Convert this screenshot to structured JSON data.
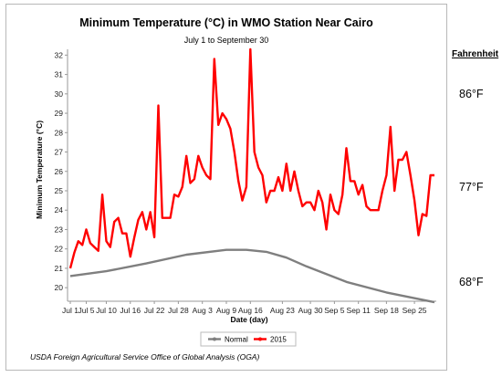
{
  "chart_data": {
    "type": "line",
    "title": "Minimum Temperature (°C) in WMO Station Near Cairo",
    "subtitle": "July 1 to September 30",
    "xlabel": "Date (day)",
    "ylabel": "Minimum Temperature (°C)",
    "ylim": [
      19.3,
      32.3
    ],
    "yticks": [
      20,
      21,
      22,
      23,
      24,
      25,
      26,
      27,
      28,
      29,
      30,
      31,
      32
    ],
    "x_range_days": [
      1,
      92
    ],
    "x_ticks": [
      {
        "day": 1,
        "label": "Jul 1"
      },
      {
        "day": 5,
        "label": "Jul 5"
      },
      {
        "day": 10,
        "label": "Jul 10"
      },
      {
        "day": 16,
        "label": "Jul 16"
      },
      {
        "day": 22,
        "label": "Jul 22"
      },
      {
        "day": 28,
        "label": "Jul 28"
      },
      {
        "day": 34,
        "label": "Aug 3"
      },
      {
        "day": 40,
        "label": "Aug 9"
      },
      {
        "day": 46,
        "label": "Aug 16"
      },
      {
        "day": 54,
        "label": "Aug 23"
      },
      {
        "day": 61,
        "label": "Aug 30"
      },
      {
        "day": 67,
        "label": "Sep 5"
      },
      {
        "day": 73,
        "label": "Sep 11"
      },
      {
        "day": 80,
        "label": "Sep 18"
      },
      {
        "day": 87,
        "label": "Sep 25"
      }
    ],
    "grid": false,
    "legend_position": "bottom",
    "series": [
      {
        "name": "Normal",
        "color": "#7f7f7f",
        "x": [
          1,
          10,
          20,
          30,
          40,
          45,
          50,
          55,
          60,
          70,
          80,
          92
        ],
        "values": [
          20.6,
          20.85,
          21.25,
          21.7,
          21.95,
          21.95,
          21.85,
          21.55,
          21.1,
          20.3,
          19.75,
          19.25
        ]
      },
      {
        "name": "2015",
        "color": "#ff0000",
        "x": [
          1,
          2,
          3,
          4,
          5,
          6,
          7,
          8,
          9,
          10,
          11,
          12,
          13,
          14,
          15,
          16,
          17,
          18,
          19,
          20,
          21,
          22,
          23,
          24,
          25,
          26,
          27,
          28,
          29,
          30,
          31,
          32,
          33,
          34,
          35,
          36,
          37,
          38,
          39,
          40,
          41,
          42,
          43,
          44,
          45,
          46,
          47,
          48,
          49,
          50,
          51,
          52,
          53,
          54,
          55,
          56,
          57,
          58,
          59,
          60,
          61,
          62,
          63,
          64,
          65,
          66,
          67,
          68,
          69,
          70,
          71,
          72,
          73,
          74,
          75,
          76,
          77,
          78,
          79,
          80,
          81,
          82,
          83,
          84,
          85,
          86,
          87,
          88,
          89,
          90,
          91,
          92
        ],
        "values": [
          21.0,
          21.8,
          22.4,
          22.2,
          23.0,
          22.3,
          22.1,
          21.9,
          24.8,
          22.4,
          22.1,
          23.4,
          23.6,
          22.8,
          22.8,
          21.6,
          22.6,
          23.5,
          23.9,
          23.0,
          23.9,
          22.6,
          29.4,
          23.6,
          23.6,
          23.6,
          24.8,
          24.7,
          25.2,
          26.8,
          25.4,
          25.6,
          26.8,
          26.2,
          25.8,
          25.6,
          31.8,
          28.4,
          29.0,
          28.7,
          28.2,
          27.0,
          25.5,
          24.5,
          25.2,
          32.3,
          27.0,
          26.2,
          25.8,
          24.4,
          25.0,
          25.0,
          25.7,
          25.0,
          26.4,
          25.0,
          26.0,
          25.0,
          24.2,
          24.4,
          24.4,
          24.0,
          25.0,
          24.4,
          23.0,
          24.8,
          24.0,
          23.8,
          24.8,
          27.2,
          25.5,
          25.5,
          24.8,
          25.3,
          24.2,
          24.0,
          24.0,
          24.0,
          25.0,
          25.8,
          28.3,
          25.0,
          26.6,
          26.6,
          27.0,
          25.8,
          24.5,
          22.7,
          23.8,
          23.7,
          25.8,
          25.8
        ]
      }
    ]
  },
  "right_axis": {
    "heading": "Fahrenheit",
    "labels": [
      "86°F",
      "77°F",
      "68°F"
    ]
  },
  "footer": {
    "source": "USDA Foreign Agricultural Service Office of Global Analysis (OGA)"
  }
}
